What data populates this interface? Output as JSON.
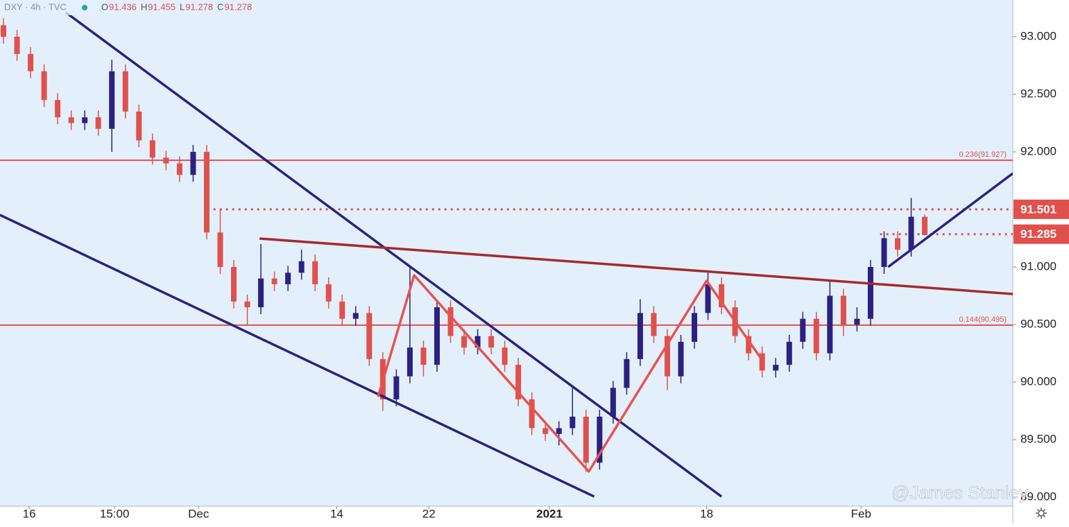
{
  "chart_data": {
    "type": "candlestick",
    "symbol": "DXY · 4h · TVC",
    "legend_values": [
      {
        "key": "O",
        "value": "91.436"
      },
      {
        "key": "H",
        "value": "91.455"
      },
      {
        "key": "L",
        "value": "91.278"
      },
      {
        "key": "C",
        "value": "91.278"
      }
    ],
    "watermark": "@James Stanley",
    "up_color": "#2b2180",
    "down_color": "#e0504c",
    "background": "#e3f0fc",
    "grid": false,
    "xlim": [
      -0.256,
      74.5
    ],
    "ylim": [
      88.922,
      93.319
    ],
    "xticks": [
      {
        "value": 1.9,
        "label": "16"
      },
      {
        "value": 8.2,
        "label": "15:00"
      },
      {
        "value": 14.4,
        "label": "Dec"
      },
      {
        "value": 24.6,
        "label": "14"
      },
      {
        "value": 31.4,
        "label": "22"
      },
      {
        "value": 40.3,
        "label": "2021"
      },
      {
        "value": 51.9,
        "label": "18"
      },
      {
        "value": 63.3,
        "label": "Feb"
      }
    ],
    "yticks": [
      {
        "value": 93,
        "label": "93.000"
      },
      {
        "value": 92.5,
        "label": "92.500"
      },
      {
        "value": 92,
        "label": "92.000"
      },
      {
        "value": 91,
        "label": "91.000"
      },
      {
        "value": 90.5,
        "label": "90.500"
      },
      {
        "value": 90,
        "label": "90.000"
      },
      {
        "value": 89.5,
        "label": "89.500"
      },
      {
        "value": 89,
        "label": "89.000"
      }
    ],
    "x": [
      0,
      1,
      2,
      3,
      4,
      5,
      6,
      7,
      8,
      9,
      10,
      11,
      12,
      13,
      14,
      15,
      16,
      17,
      18,
      19,
      20,
      21,
      22,
      23,
      24,
      25,
      26,
      27,
      28,
      29,
      30,
      31,
      32,
      33,
      34,
      35,
      36,
      37,
      38,
      39,
      40,
      41,
      42,
      43,
      44,
      45,
      46,
      47,
      48,
      49,
      50,
      51,
      52,
      53,
      54,
      55,
      56,
      57,
      58,
      59,
      60,
      61,
      62,
      63,
      64,
      65,
      66,
      67,
      68
    ],
    "open": [
      93.1,
      93.0,
      92.85,
      92.7,
      92.45,
      92.3,
      92.25,
      92.3,
      92.2,
      92.7,
      92.35,
      92.1,
      91.95,
      91.9,
      91.8,
      92.0,
      91.3,
      91.0,
      90.7,
      90.65,
      90.9,
      90.85,
      90.95,
      91.05,
      90.85,
      90.7,
      90.55,
      90.6,
      90.2,
      89.85,
      90.05,
      90.3,
      90.15,
      90.65,
      90.4,
      90.3,
      90.4,
      90.3,
      90.15,
      89.85,
      89.6,
      89.55,
      89.6,
      89.7,
      89.3,
      89.7,
      89.95,
      90.2,
      90.6,
      90.4,
      90.05,
      90.35,
      90.6,
      90.85,
      90.65,
      90.4,
      90.25,
      90.1,
      90.15,
      90.35,
      90.55,
      90.25,
      90.75,
      90.5,
      90.55,
      91.0,
      91.25,
      91.15,
      91.436
    ],
    "high": [
      93.16,
      93.06,
      92.91,
      92.76,
      92.51,
      92.36,
      92.36,
      92.36,
      92.8,
      92.76,
      92.41,
      92.16,
      92.01,
      91.96,
      92.06,
      92.06,
      91.5,
      91.06,
      90.76,
      91.2,
      90.96,
      91.01,
      91.15,
      91.11,
      90.91,
      90.76,
      90.66,
      90.66,
      90.26,
      90.11,
      91.0,
      90.36,
      90.71,
      90.71,
      90.46,
      90.46,
      90.46,
      90.36,
      90.21,
      89.91,
      89.66,
      89.66,
      89.95,
      89.76,
      89.76,
      90.01,
      90.26,
      90.72,
      90.66,
      90.46,
      90.41,
      90.66,
      90.95,
      90.91,
      90.71,
      90.46,
      90.31,
      90.21,
      90.41,
      90.61,
      90.61,
      90.88,
      90.81,
      90.65,
      91.06,
      91.31,
      91.31,
      91.6,
      91.455
    ],
    "low": [
      92.94,
      92.79,
      92.64,
      92.39,
      92.24,
      92.19,
      92.19,
      92.14,
      92.0,
      92.29,
      92.04,
      91.89,
      91.84,
      91.74,
      91.74,
      91.24,
      90.94,
      90.64,
      90.5,
      90.59,
      90.79,
      90.79,
      90.89,
      90.79,
      90.64,
      90.49,
      90.49,
      90.14,
      89.75,
      89.79,
      89.99,
      90.05,
      90.09,
      90.34,
      90.24,
      90.24,
      90.24,
      90.09,
      89.79,
      89.54,
      89.49,
      89.45,
      89.54,
      89.22,
      89.24,
      89.64,
      89.89,
      90.14,
      90.34,
      89.93,
      89.99,
      90.29,
      90.54,
      90.59,
      90.34,
      90.19,
      90.04,
      90.04,
      90.09,
      90.29,
      90.19,
      90.19,
      90.4,
      90.44,
      90.49,
      90.94,
      91.09,
      91.09,
      91.278
    ],
    "close": [
      93.0,
      92.85,
      92.7,
      92.45,
      92.3,
      92.25,
      92.3,
      92.2,
      92.7,
      92.35,
      92.1,
      91.95,
      91.9,
      91.8,
      92.0,
      91.3,
      91.0,
      90.7,
      90.65,
      90.9,
      90.85,
      90.95,
      91.05,
      90.85,
      90.7,
      90.55,
      90.6,
      90.2,
      89.85,
      90.05,
      90.3,
      90.15,
      90.65,
      90.4,
      90.3,
      90.4,
      90.3,
      90.15,
      89.85,
      89.6,
      89.55,
      89.6,
      89.7,
      89.3,
      89.7,
      89.95,
      90.2,
      90.6,
      90.4,
      90.05,
      90.35,
      90.6,
      90.85,
      90.65,
      90.4,
      90.25,
      90.1,
      90.15,
      90.35,
      90.55,
      90.25,
      90.75,
      90.5,
      90.55,
      91.0,
      91.25,
      91.15,
      91.436,
      91.278
    ],
    "hlines": [
      {
        "value": 91.927,
        "label": "0.236(91.927)",
        "color": "#e0504c",
        "style": "solid"
      },
      {
        "value": 90.495,
        "label": "0.144(90.495)",
        "color": "#e0504c",
        "style": "solid"
      },
      {
        "value": 91.501,
        "tag": "91.501",
        "color": "#e0504c",
        "style": "dotted",
        "x_start": 15.5
      },
      {
        "value": 91.285,
        "tag": "91.285",
        "color": "#e0504c",
        "style": "dotted",
        "x_start": 64.7
      }
    ],
    "trendlines": [
      {
        "color": "#2b2180",
        "x": [
          4.6,
          53.0
        ],
        "y": [
          93.211,
          89.006
        ]
      },
      {
        "color": "#2b2180",
        "x": [
          -0.26,
          43.6
        ],
        "y": [
          91.452,
          89.006
        ]
      },
      {
        "color": "#a52a2a",
        "x": [
          18.9,
          74.5
        ],
        "y": [
          91.247,
          90.765
        ]
      },
      {
        "color": "#2b2180",
        "x": [
          65.3,
          74.5
        ],
        "y": [
          91.0,
          91.813
        ]
      },
      {
        "color": "#e8524e",
        "x": [
          27.65,
          30.31,
          43.2,
          51.9,
          56.1
        ],
        "y": [
          89.873,
          90.928,
          89.223,
          90.88,
          90.175
        ]
      }
    ]
  }
}
